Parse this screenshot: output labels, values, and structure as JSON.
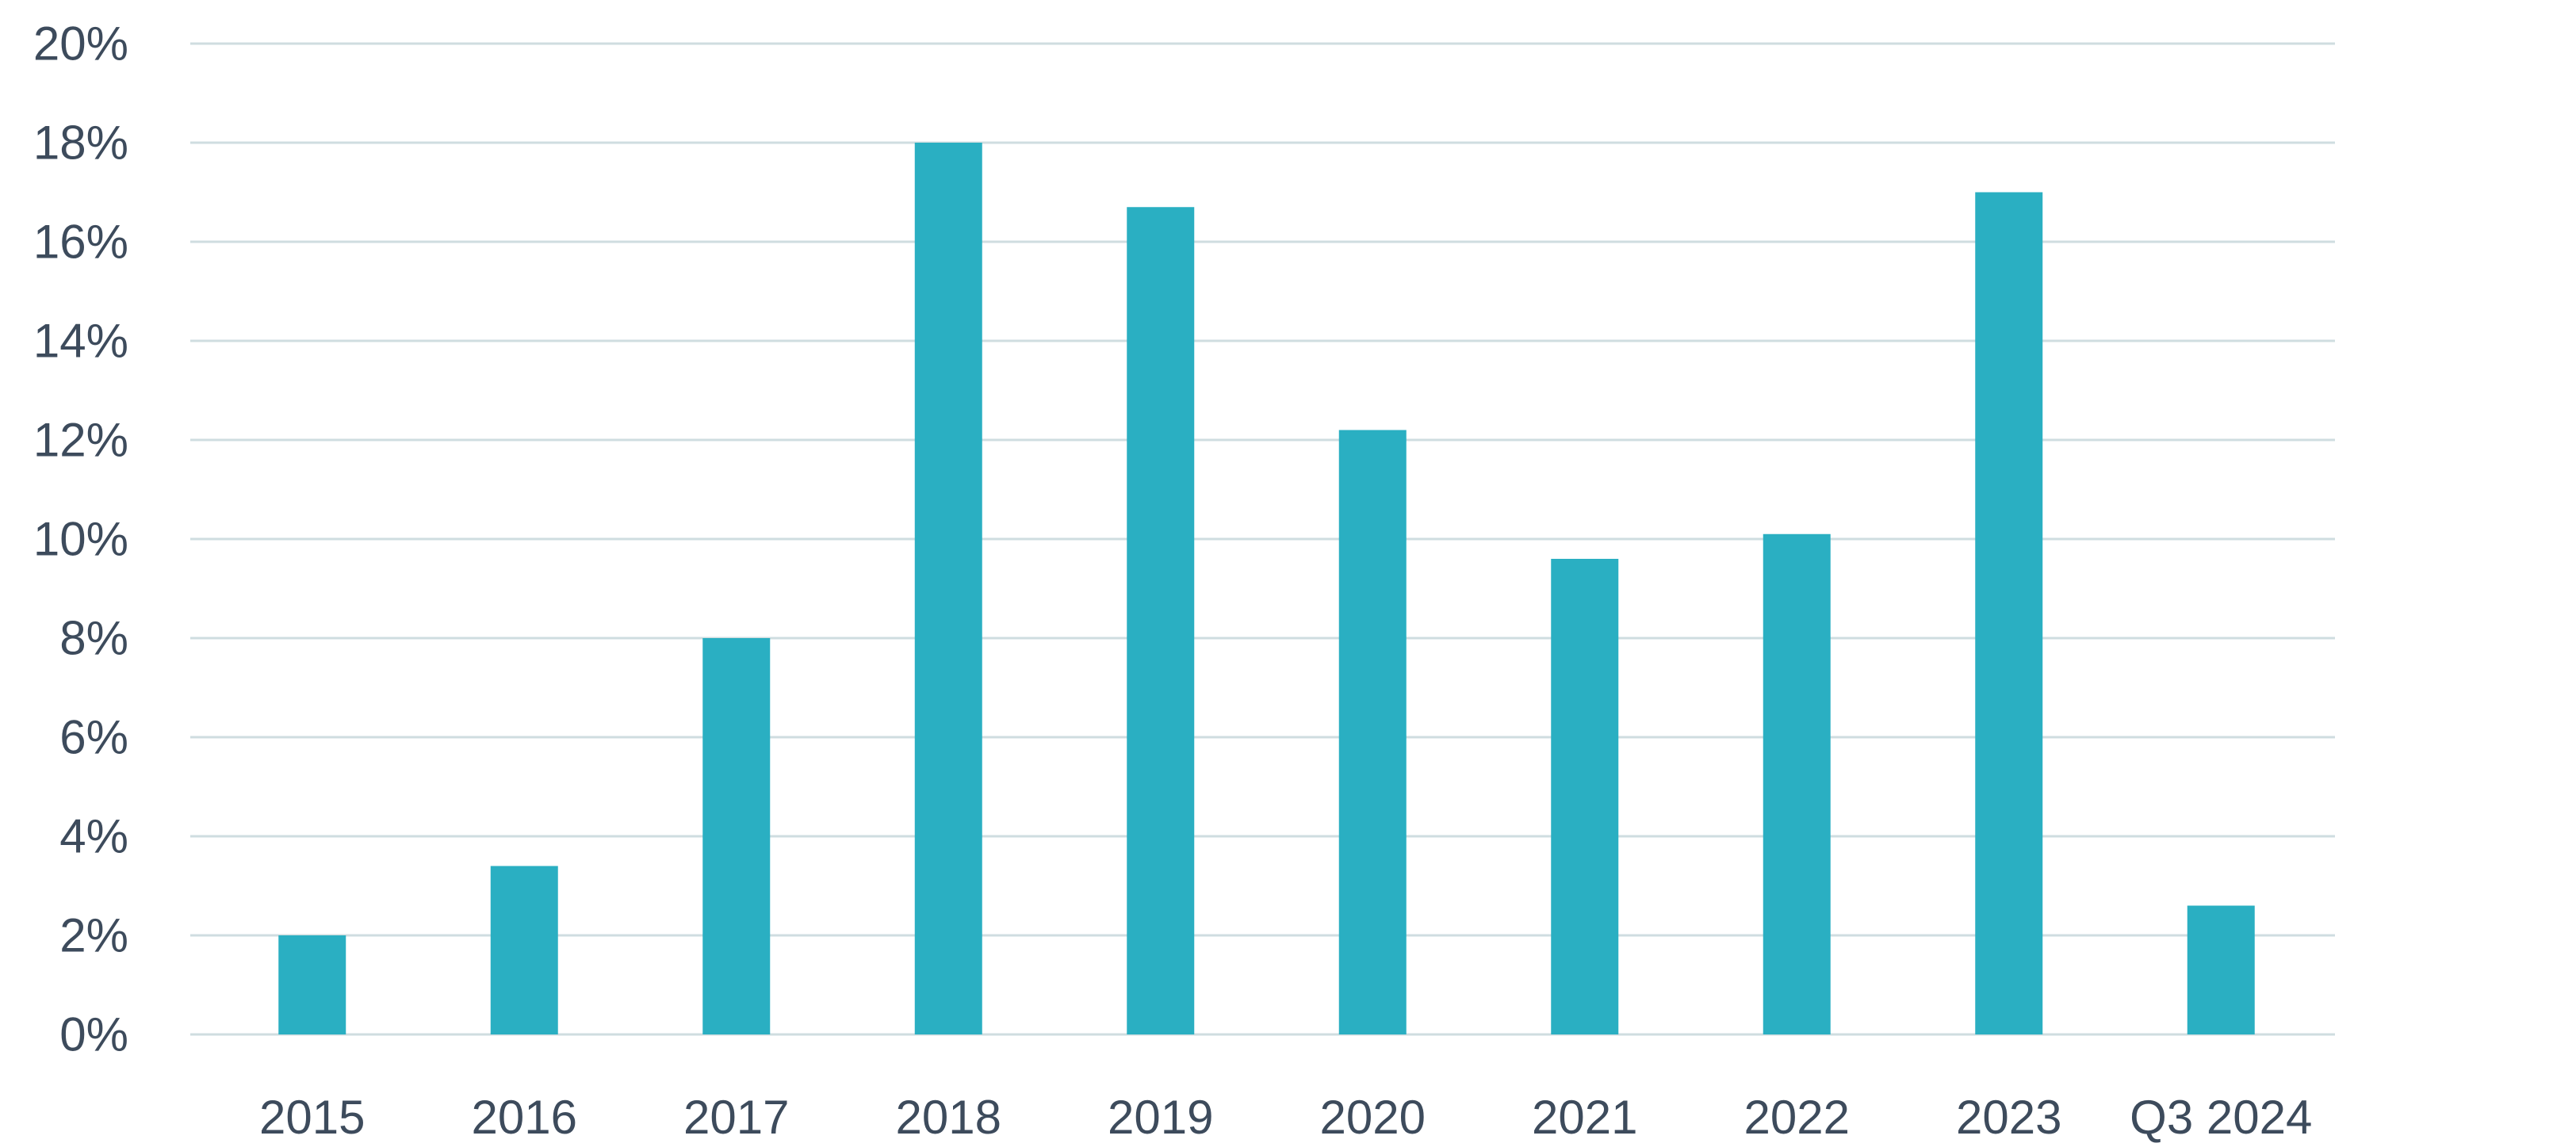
{
  "chart_data": {
    "type": "bar",
    "categories": [
      "2015",
      "2016",
      "2017",
      "2018",
      "2019",
      "2020",
      "2021",
      "2022",
      "2023",
      "Q3 2024"
    ],
    "values": [
      2.0,
      3.4,
      8.0,
      18.0,
      16.7,
      12.2,
      9.6,
      10.1,
      17.0,
      2.6
    ],
    "ylim": [
      0,
      20
    ],
    "yticks": [
      0,
      2,
      4,
      6,
      8,
      10,
      12,
      14,
      16,
      18,
      20
    ],
    "ytick_labels": [
      "0%",
      "2%",
      "4%",
      "6%",
      "8%",
      "10%",
      "12%",
      "14%",
      "16%",
      "18%",
      "20%"
    ],
    "grid": true,
    "legend": false,
    "colors": {
      "bar": "#2aafc2",
      "grid": "#cfdde0",
      "text": "#3d4b5c"
    }
  }
}
